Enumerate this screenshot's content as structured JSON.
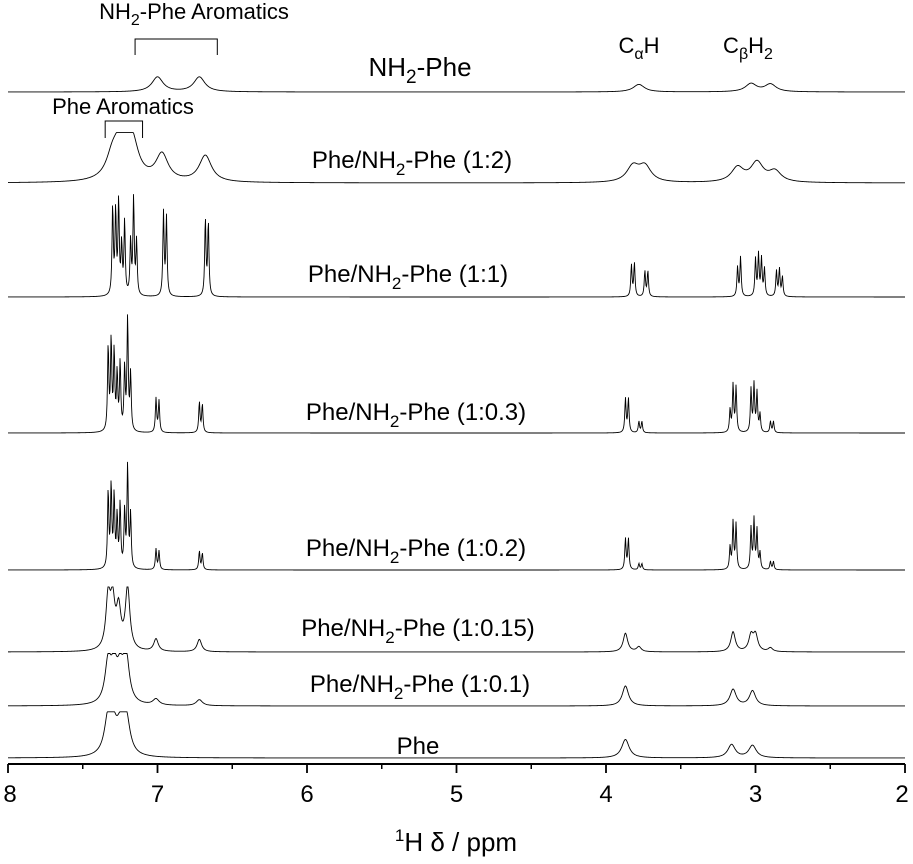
{
  "chart_data": {
    "type": "line",
    "xlabel": {
      "sup": "1",
      "main": "H δ / ppm"
    },
    "xlim": [
      8,
      2
    ],
    "x_direction": "reversed",
    "ticks": [
      "8",
      "7",
      "6",
      "5",
      "4",
      "3",
      "2"
    ],
    "tick_values": [
      8,
      7,
      6,
      5,
      4,
      3,
      2
    ],
    "y_axis": "none",
    "grid": false,
    "legend": "none",
    "line_color": "#000000",
    "annotations": {
      "nh2_aromatics": {
        "pre": "NH",
        "sub": "2",
        "post": "-Phe Aromatics",
        "ppm_range": [
          7.15,
          6.6
        ]
      },
      "phe_aromatics": {
        "text": "Phe Aromatics",
        "ppm_range": [
          7.35,
          7.1
        ]
      },
      "calpha": {
        "main": "C",
        "sub": "α",
        "post": "H",
        "ppm": 3.78
      },
      "cbeta": {
        "main": "C",
        "sub": "β",
        "mid": "H",
        "sub2": "2",
        "ppm": 2.98
      }
    },
    "series": [
      {
        "label": {
          "pre": "NH",
          "sub": "2",
          "post": "-Phe"
        },
        "width": 0.045,
        "peaks": [
          [
            7.0,
            0.55
          ],
          [
            6.72,
            0.55
          ],
          [
            3.78,
            0.28
          ],
          [
            3.03,
            0.3
          ],
          [
            2.9,
            0.28
          ]
        ]
      },
      {
        "label": {
          "pre": "Phe/NH",
          "sub": "2",
          "post": "-Phe (1:2)"
        },
        "width": 0.05,
        "peaks": [
          [
            7.3,
            0.45
          ],
          [
            7.24,
            0.8
          ],
          [
            7.17,
            0.75
          ],
          [
            6.97,
            0.55
          ],
          [
            6.68,
            0.55
          ],
          [
            3.82,
            0.32
          ],
          [
            3.74,
            0.32
          ],
          [
            3.12,
            0.3
          ],
          [
            2.99,
            0.4
          ],
          [
            2.87,
            0.22
          ]
        ]
      },
      {
        "label": {
          "pre": "Phe/NH",
          "sub": "2",
          "post": "-Phe (1:1)"
        },
        "width": 0.005,
        "peaks": [
          [
            7.3,
            0.9
          ],
          [
            7.28,
            0.85
          ],
          [
            7.26,
            0.95
          ],
          [
            7.24,
            0.5
          ],
          [
            7.22,
            0.75
          ],
          [
            7.18,
            0.55
          ],
          [
            7.16,
            1.0
          ],
          [
            7.14,
            0.55
          ],
          [
            6.96,
            0.85
          ],
          [
            6.94,
            0.8
          ],
          [
            6.68,
            0.78
          ],
          [
            6.66,
            0.75
          ],
          [
            3.83,
            0.32
          ],
          [
            3.81,
            0.34
          ],
          [
            3.74,
            0.26
          ],
          [
            3.72,
            0.26
          ],
          [
            3.12,
            0.3
          ],
          [
            3.1,
            0.4
          ],
          [
            3.0,
            0.38
          ],
          [
            2.98,
            0.42
          ],
          [
            2.96,
            0.38
          ],
          [
            2.94,
            0.28
          ],
          [
            2.86,
            0.26
          ],
          [
            2.84,
            0.28
          ],
          [
            2.82,
            0.2
          ]
        ]
      },
      {
        "label": {
          "pre": "Phe/NH",
          "sub": "2",
          "post": "-Phe (1:0.3)"
        },
        "width": 0.005,
        "peaks": [
          [
            7.33,
            0.75
          ],
          [
            7.31,
            0.8
          ],
          [
            7.29,
            0.7
          ],
          [
            7.27,
            0.5
          ],
          [
            7.25,
            0.6
          ],
          [
            7.22,
            0.55
          ],
          [
            7.2,
            1.0
          ],
          [
            7.18,
            0.5
          ],
          [
            7.01,
            0.3
          ],
          [
            6.99,
            0.28
          ],
          [
            6.72,
            0.27
          ],
          [
            6.7,
            0.25
          ],
          [
            3.87,
            0.3
          ],
          [
            3.85,
            0.3
          ],
          [
            3.78,
            0.1
          ],
          [
            3.76,
            0.1
          ],
          [
            3.17,
            0.2
          ],
          [
            3.15,
            0.42
          ],
          [
            3.13,
            0.4
          ],
          [
            3.03,
            0.38
          ],
          [
            3.01,
            0.42
          ],
          [
            2.99,
            0.35
          ],
          [
            2.97,
            0.16
          ],
          [
            2.9,
            0.1
          ],
          [
            2.88,
            0.1
          ]
        ]
      },
      {
        "label": {
          "pre": "Phe/NH",
          "sub": "2",
          "post": "-Phe (1:0.2)"
        },
        "width": 0.005,
        "peaks": [
          [
            7.33,
            0.75
          ],
          [
            7.31,
            0.8
          ],
          [
            7.29,
            0.7
          ],
          [
            7.27,
            0.5
          ],
          [
            7.25,
            0.62
          ],
          [
            7.22,
            0.55
          ],
          [
            7.2,
            1.0
          ],
          [
            7.18,
            0.52
          ],
          [
            7.01,
            0.2
          ],
          [
            6.99,
            0.18
          ],
          [
            6.72,
            0.18
          ],
          [
            6.7,
            0.16
          ],
          [
            3.87,
            0.3
          ],
          [
            3.85,
            0.3
          ],
          [
            3.78,
            0.06
          ],
          [
            3.76,
            0.06
          ],
          [
            3.17,
            0.22
          ],
          [
            3.15,
            0.46
          ],
          [
            3.13,
            0.44
          ],
          [
            3.03,
            0.4
          ],
          [
            3.01,
            0.48
          ],
          [
            2.99,
            0.38
          ],
          [
            2.97,
            0.16
          ],
          [
            2.9,
            0.08
          ],
          [
            2.88,
            0.08
          ]
        ]
      },
      {
        "label": {
          "pre": "Phe/NH",
          "sub": "2",
          "post": "-Phe (1:0.15)"
        },
        "width": 0.018,
        "peaks": [
          [
            7.33,
            0.82
          ],
          [
            7.3,
            0.72
          ],
          [
            7.26,
            0.62
          ],
          [
            7.2,
            1.0
          ],
          [
            7.01,
            0.2
          ],
          [
            6.72,
            0.2
          ],
          [
            3.87,
            0.3
          ],
          [
            3.78,
            0.08
          ],
          [
            3.15,
            0.32
          ],
          [
            3.03,
            0.25
          ],
          [
            3.0,
            0.26
          ],
          [
            2.9,
            0.06
          ]
        ]
      },
      {
        "label": {
          "pre": "Phe/NH",
          "sub": "2",
          "post": "-Phe (1:0.1)"
        },
        "width": 0.025,
        "peaks": [
          [
            7.33,
            0.8
          ],
          [
            7.29,
            0.65
          ],
          [
            7.25,
            0.55
          ],
          [
            7.21,
            0.92
          ],
          [
            7.01,
            0.12
          ],
          [
            6.72,
            0.12
          ],
          [
            3.87,
            0.4
          ],
          [
            3.15,
            0.33
          ],
          [
            3.02,
            0.3
          ]
        ]
      },
      {
        "label": {
          "text": "Phe"
        },
        "width": 0.03,
        "peaks": [
          [
            7.33,
            0.75
          ],
          [
            7.3,
            0.6
          ],
          [
            7.25,
            0.5
          ],
          [
            7.21,
            0.85
          ],
          [
            3.87,
            0.42
          ],
          [
            3.16,
            0.3
          ],
          [
            3.02,
            0.28
          ]
        ]
      }
    ]
  }
}
